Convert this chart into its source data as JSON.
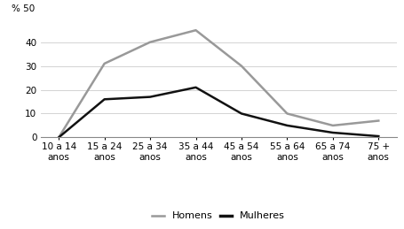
{
  "categories": [
    "10 a 14\nanos",
    "15 a 24\nanos",
    "25 a 34\nanos",
    "35 a 44\nanos",
    "45 a 54\nanos",
    "55 a 64\nanos",
    "65 a 74\nanos",
    "75 +\nanos"
  ],
  "homens": [
    0,
    31,
    40,
    45,
    30,
    10,
    5,
    7
  ],
  "mulheres": [
    0,
    16,
    17,
    21,
    10,
    5,
    2,
    0.5
  ],
  "homens_color": "#999999",
  "mulheres_color": "#111111",
  "ylabel_text": "% 50",
  "yticks": [
    0,
    10,
    20,
    30,
    40
  ],
  "ylim": [
    0,
    50
  ],
  "legend_homens": "Homens",
  "legend_mulheres": "Mulheres",
  "linewidth": 1.8,
  "background_color": "#ffffff",
  "tick_fontsize": 7.5,
  "legend_fontsize": 8
}
